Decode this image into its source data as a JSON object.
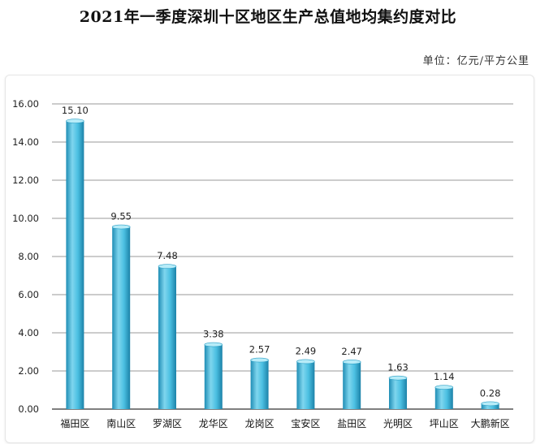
{
  "title": "2021年一季度深圳十区地区生产总值地均集约度对比",
  "unit_label": "单位：亿元/平方公里",
  "colors": {
    "bar_light": "#7fd6ee",
    "bar_mid": "#3bb3d8",
    "bar_dark": "#1f8db5",
    "grid": "#9a9a9a",
    "axis": "#333333"
  },
  "chart_data": {
    "type": "bar",
    "title": "2021年一季度深圳十区地区生产总值地均集约度对比",
    "unit": "单位：亿元/平方公里",
    "categories": [
      "福田区",
      "南山区",
      "罗湖区",
      "龙华区",
      "龙岗区",
      "宝安区",
      "盐田区",
      "光明区",
      "坪山区",
      "大鹏新区"
    ],
    "values": [
      15.1,
      9.55,
      7.48,
      3.38,
      2.57,
      2.49,
      2.47,
      1.63,
      1.14,
      0.28
    ],
    "data_labels": [
      "15.10",
      "9.55",
      "7.48",
      "3.38",
      "2.57",
      "2.49",
      "2.47",
      "1.63",
      "1.14",
      "0.28"
    ],
    "ylim": [
      0,
      16
    ],
    "yticks": [
      0,
      2,
      4,
      6,
      8,
      10,
      12,
      14,
      16
    ],
    "ytick_labels": [
      "0.00",
      "2.00",
      "4.00",
      "6.00",
      "8.00",
      "10.00",
      "12.00",
      "14.00",
      "16.00"
    ],
    "grid": true,
    "legend": "none"
  }
}
